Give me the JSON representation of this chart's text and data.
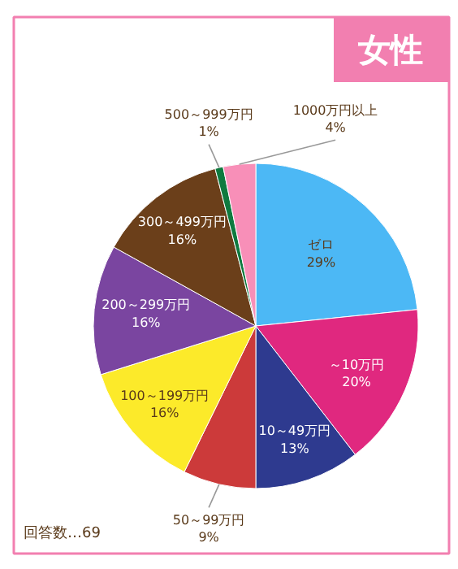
{
  "chart_data": {
    "type": "pie",
    "title": "女性",
    "categories": [
      "ゼロ",
      "～10万円",
      "10～49万円",
      "50～99万円",
      "100～199万円",
      "200～299万円",
      "300～499万円",
      "500～999万円",
      "1000万円以上"
    ],
    "values": [
      29,
      20,
      13,
      9,
      16,
      16,
      16,
      1,
      4
    ],
    "value_labels": [
      "29%",
      "20%",
      "13%",
      "9%",
      "16%",
      "16%",
      "16%",
      "1%",
      "4%"
    ],
    "colors": [
      "#4cb8f5",
      "#e0287f",
      "#2e3a8f",
      "#cc3a3a",
      "#fcea2a",
      "#7a45a0",
      "#6b3f1a",
      "#0f7a3f",
      "#f88fb8"
    ],
    "annotations": [
      "回答数…69"
    ]
  }
}
